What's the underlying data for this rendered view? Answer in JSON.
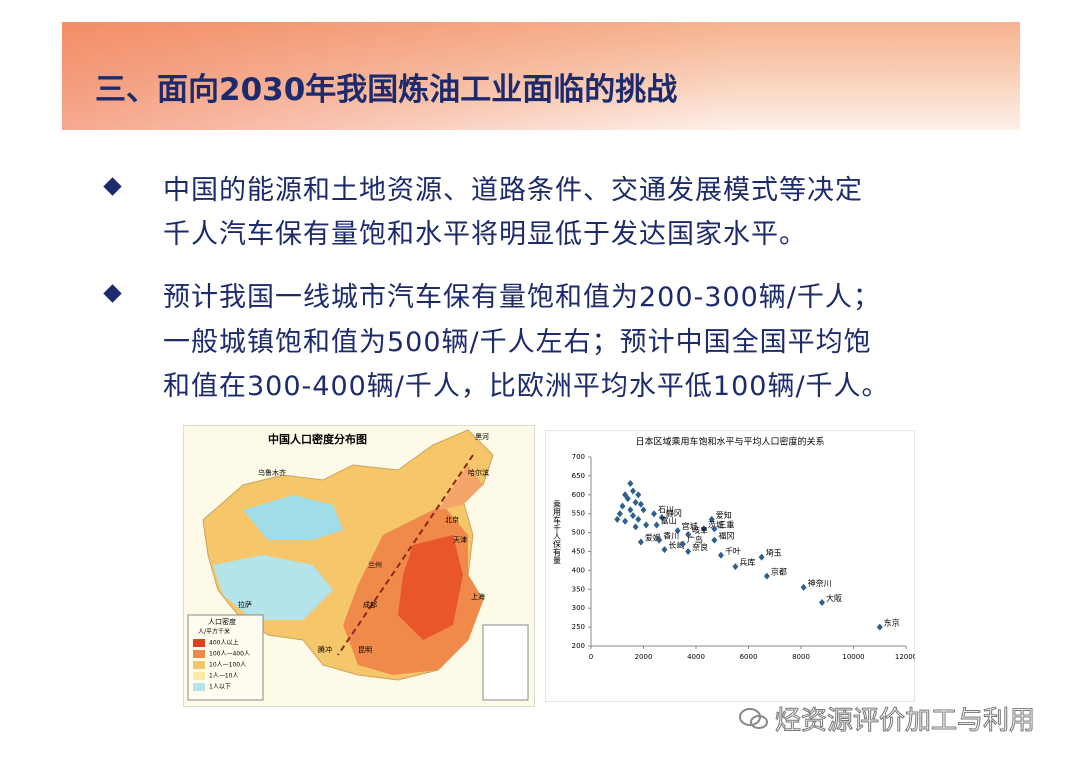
{
  "header": {
    "title": "三、面向2030年我国炼油工业面临的挑战"
  },
  "bullets": [
    {
      "lines": [
        "中国的能源和土地资源、道路条件、交通发展模式等决定",
        "千人汽车保有量饱和水平将明显低于发达国家水平。"
      ]
    },
    {
      "lines": [
        "预计我国一线城市汽车保有量饱和值为200-300辆/千人；",
        "一般城镇饱和值为500辆/千人左右；预计中国全国平均饱",
        "和值在300-400辆/千人，比欧洲平均水平低100辆/千人。"
      ]
    }
  ],
  "map": {
    "title": "中国人口密度分布图",
    "places": [
      "黑河",
      "哈尔滨",
      "乌鲁木齐",
      "北京",
      "天津",
      "兰州",
      "成都",
      "拉萨",
      "上海",
      "昆明",
      "腾冲"
    ],
    "legend": {
      "title": "人口密度",
      "unit": "人/平方千米",
      "items": [
        "400人以上",
        "100人—400人",
        "10人—100人",
        "1人—10人",
        "1人以下"
      ]
    }
  },
  "chart_data": {
    "type": "scatter",
    "title": "日本区域乘用车饱和水平与平均人口密度的关系",
    "y_label": "乘用车千人保有量",
    "color": "#2e5f8e",
    "x": [
      1500,
      1600,
      1300,
      1800,
      1400,
      1700,
      1200,
      1900,
      1500,
      2000,
      1100,
      1600,
      1800,
      1300,
      2100,
      1700,
      1000,
      2400,
      2700,
      4600,
      2500,
      4300,
      3300,
      3700,
      4700,
      4700,
      1900,
      2600,
      2800,
      3500,
      3700,
      4950,
      6500,
      5500,
      6700,
      8100,
      8800,
      11000
    ],
    "values": [
      630,
      610,
      600,
      600,
      590,
      580,
      570,
      575,
      560,
      560,
      550,
      545,
      535,
      530,
      520,
      515,
      535,
      550,
      540,
      535,
      520,
      510,
      505,
      495,
      480,
      510,
      475,
      480,
      455,
      470,
      450,
      440,
      435,
      410,
      385,
      355,
      315,
      250
    ],
    "labels": [
      null,
      null,
      null,
      null,
      null,
      null,
      null,
      null,
      null,
      null,
      null,
      null,
      null,
      null,
      null,
      null,
      null,
      "石川",
      "静冈",
      "爱知",
      "富山",
      "茨城",
      "宫城",
      "岐阜",
      "福冈",
      "三重",
      "爱媛",
      "香川",
      "长崎",
      "广岛",
      "奈良",
      "千叶",
      "埼玉",
      "兵库",
      "京都",
      "神奈川",
      "大阪",
      "东京"
    ],
    "xlim": [
      0,
      12000
    ],
    "xticks": [
      0,
      2000,
      4000,
      6000,
      8000,
      10000,
      12000
    ],
    "ylim": [
      200,
      700
    ],
    "yticks": [
      200,
      250,
      300,
      350,
      400,
      450,
      500,
      550,
      600,
      650,
      700
    ]
  },
  "watermark": "烃资源评价加工与利用"
}
